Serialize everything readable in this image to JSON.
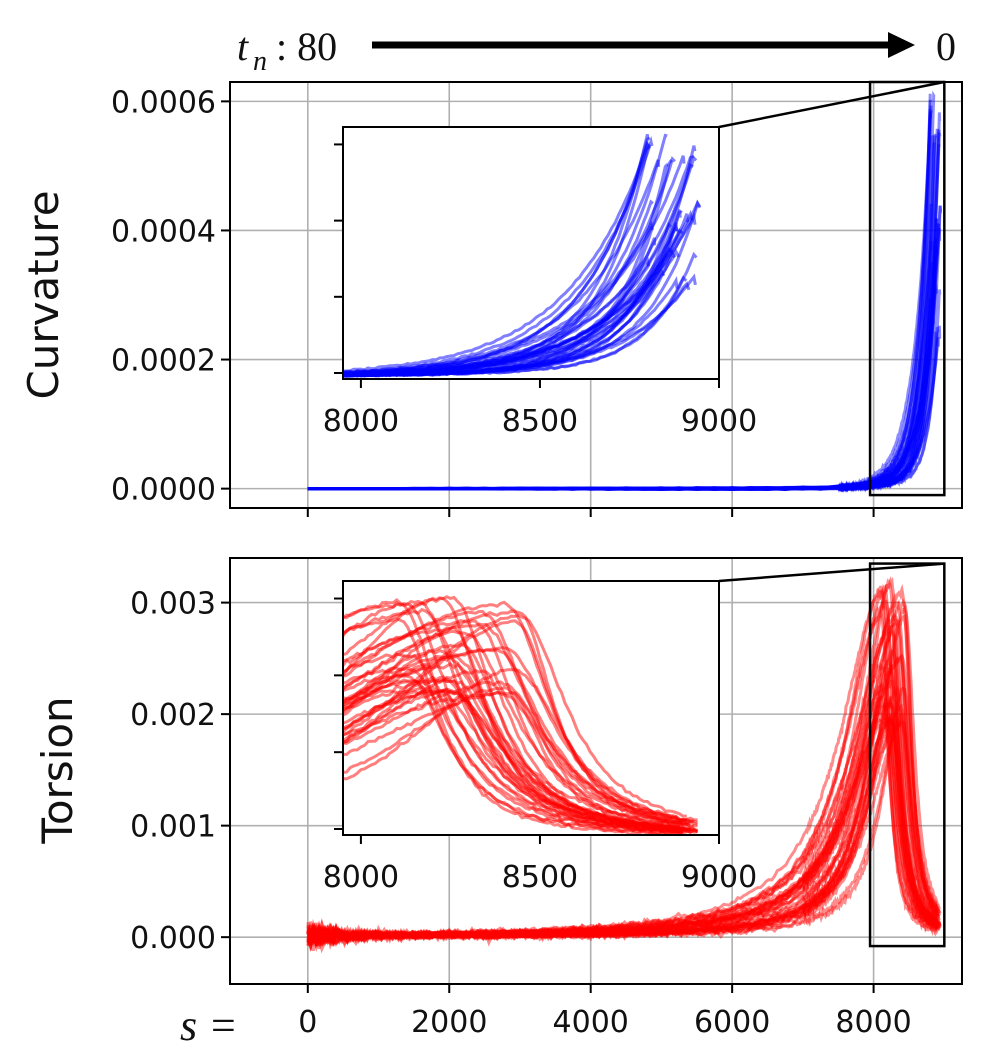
{
  "header": {
    "t_symbol": "t",
    "t_subscript": "n",
    "start_text": ": 80",
    "end_text": "0"
  },
  "x_axis_prefix": "s =",
  "chart_data": [
    {
      "type": "line",
      "name": "curvature",
      "ylabel": "Curvature",
      "color": "#0000ff",
      "xlim": [
        -1100,
        9250
      ],
      "ylim": [
        -3e-05,
        0.00063
      ],
      "xticks": [
        0,
        2000,
        4000,
        6000,
        8000
      ],
      "xtick_labels": [
        "0",
        "2000",
        "4000",
        "6000",
        "8000"
      ],
      "yticks": [
        0.0,
        0.0002,
        0.0004,
        0.0006
      ],
      "ytick_labels": [
        "0.0000",
        "0.0002",
        "0.0004",
        "0.0006"
      ],
      "grid": true,
      "series_count": 40,
      "curve_shape": "exponential rise near end",
      "series_summary": {
        "x_start": 0,
        "x_end_range": [
          8800,
          8950
        ],
        "y_start": 0.0,
        "y_end_range": [
          0.0002,
          0.00062
        ]
      },
      "zoom_box": {
        "x": [
          7950,
          9000
        ],
        "y": [
          -1e-05,
          0.00063
        ]
      },
      "inset": {
        "xlim": [
          7950,
          9000
        ],
        "ylim": [
          -5e-06,
          0.00063
        ],
        "xticks": [
          8000,
          8500,
          9000
        ],
        "xtick_labels": [
          "8000",
          "8500",
          "9000"
        ]
      }
    },
    {
      "type": "line",
      "name": "torsion",
      "ylabel": "Torsion",
      "color": "#ff0000",
      "xlim": [
        -1100,
        9250
      ],
      "ylim": [
        -0.00042,
        0.0034
      ],
      "xticks": [
        0,
        2000,
        4000,
        6000,
        8000
      ],
      "xtick_labels": [
        "0",
        "2000",
        "4000",
        "6000",
        "8000"
      ],
      "yticks": [
        0.0,
        0.001,
        0.002,
        0.003
      ],
      "ytick_labels": [
        "0.000",
        "0.001",
        "0.002",
        "0.003"
      ],
      "grid": true,
      "series_count": 40,
      "curve_shape": "noisy near zero, rises to a peak around s=8200-8400, then decays",
      "series_summary": {
        "x_start": 0,
        "x_end": 8950,
        "peak_x_range": [
          8100,
          8450
        ],
        "peak_y_range": [
          0.0019,
          0.0032
        ],
        "end_y": 0.0001
      },
      "zoom_box": {
        "x": [
          7950,
          9000
        ],
        "y": [
          -8e-05,
          0.00335
        ]
      },
      "inset": {
        "xlim": [
          7950,
          9000
        ],
        "ylim": [
          5e-05,
          0.0034
        ],
        "xticks": [
          8000,
          8500,
          9000
        ],
        "xtick_labels": [
          "8000",
          "8500",
          "9000"
        ]
      }
    }
  ]
}
